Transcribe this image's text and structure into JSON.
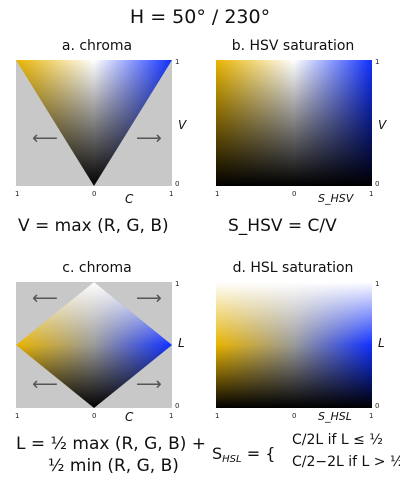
{
  "title": "H = 50° / 230°",
  "panels": {
    "a": {
      "title": "a. chroma",
      "x_axis": "C",
      "y_axis": "V",
      "ticks": {
        "x_left": "1",
        "x_mid": "0",
        "x_right": "1",
        "y_top": "1",
        "y_bottom": "0"
      },
      "formula": "V = max (R, G, B)"
    },
    "b": {
      "title": "b. HSV saturation",
      "x_axis": "S_HSV",
      "y_axis": "V",
      "ticks": {
        "x_left": "1",
        "x_mid": "0",
        "x_right": "1",
        "y_top": "1",
        "y_bottom": "0"
      },
      "formula": "S_HSV = C/V"
    },
    "c": {
      "title": "c. chroma",
      "x_axis": "C",
      "y_axis": "L",
      "ticks": {
        "x_left": "1",
        "x_mid": "0",
        "x_right": "1",
        "y_top": "1",
        "y_bottom": "0"
      },
      "formula_line1": "L = ½ max (R, G, B) +",
      "formula_line2": "½ min (R, G, B)"
    },
    "d": {
      "title": "d. HSL saturation",
      "x_axis": "S_HSL",
      "y_axis": "L",
      "ticks": {
        "x_left": "1",
        "x_mid": "0",
        "x_right": "1",
        "y_top": "1",
        "y_bottom": "0"
      },
      "formula_case1": "C/2L   if L ≤ ½",
      "formula_case2": "C/2−2L  if L > ½"
    }
  },
  "colors": {
    "hue_left": "#e8b400",
    "hue_right": "#1030ff",
    "background_gray": "#c8c8c8",
    "arrow": "#555555"
  },
  "icons": [
    "left-arrow-icon",
    "right-arrow-icon"
  ]
}
